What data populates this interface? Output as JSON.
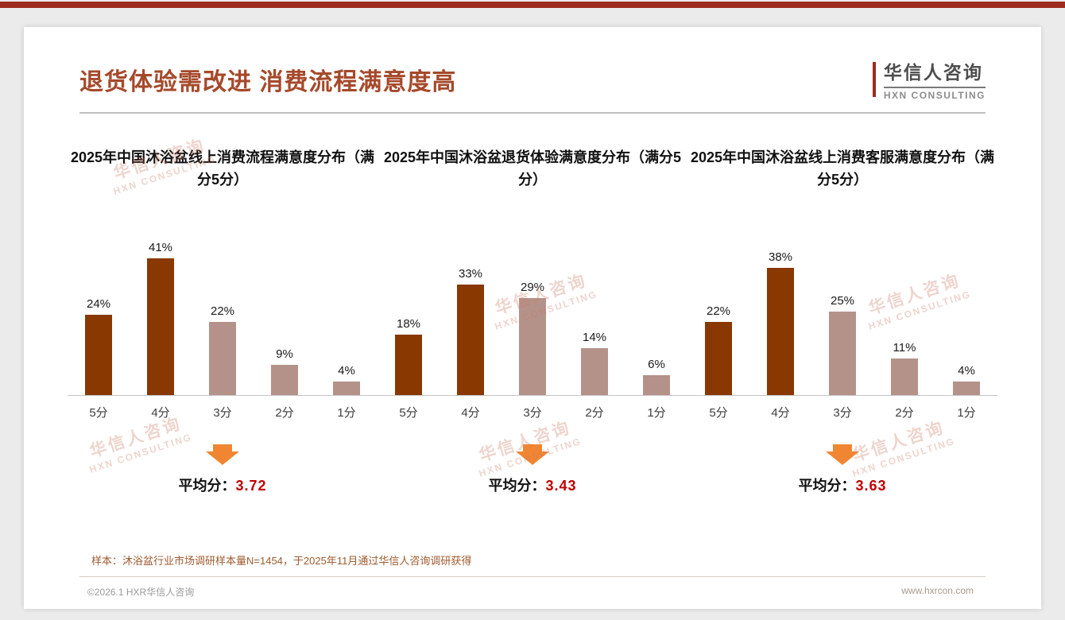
{
  "slide": {
    "title": "退货体验需改进 消费流程满意度高",
    "logo": {
      "cn": "华信人咨询",
      "en": "HXN CONSULTING"
    },
    "watermark": {
      "line1": "华信人咨询",
      "line2": "HXN CONSULTING"
    },
    "footnote": "样本：沐浴盆行业市场调研样本量N=1454，于2025年11月通过华信人咨询调研获得",
    "footer": {
      "left": "©2026.1 HXR华信人咨询",
      "right": "www.hxrcon.com"
    }
  },
  "colors": {
    "top_bar": "#9E2A1F",
    "title_color": "#A5492B",
    "bar_dark": "#883800",
    "bar_light": "#B4928A",
    "average_red": "#C00000",
    "arrow": "#F08632",
    "footnote_color": "#9E5B2F"
  },
  "chart_data": [
    {
      "type": "bar",
      "title": "2025年中国沐浴盆线上消费流程满意度分布（满分5分）",
      "categories": [
        "5分",
        "4分",
        "3分",
        "2分",
        "1分"
      ],
      "values": [
        24,
        41,
        22,
        9,
        4
      ],
      "value_labels": [
        "24%",
        "41%",
        "22%",
        "9%",
        "4%"
      ],
      "bar_colors": [
        "#883800",
        "#883800",
        "#B4928A",
        "#B4928A",
        "#B4928A"
      ],
      "ylim": [
        0,
        45
      ],
      "grid": false,
      "average_label": "平均分：",
      "average": "3.72"
    },
    {
      "type": "bar",
      "title": "2025年中国沐浴盆退货体验满意度分布（满分5分）",
      "categories": [
        "5分",
        "4分",
        "3分",
        "2分",
        "1分"
      ],
      "values": [
        18,
        33,
        29,
        14,
        6
      ],
      "value_labels": [
        "18%",
        "33%",
        "29%",
        "14%",
        "6%"
      ],
      "bar_colors": [
        "#883800",
        "#883800",
        "#B4928A",
        "#B4928A",
        "#B4928A"
      ],
      "ylim": [
        0,
        45
      ],
      "grid": false,
      "average_label": "平均分：",
      "average": "3.43"
    },
    {
      "type": "bar",
      "title": "2025年中国沐浴盆线上消费客服满意度分布（满分5分）",
      "categories": [
        "5分",
        "4分",
        "3分",
        "2分",
        "1分"
      ],
      "values": [
        22,
        38,
        25,
        11,
        4
      ],
      "value_labels": [
        "22%",
        "38%",
        "25%",
        "11%",
        "4%"
      ],
      "bar_colors": [
        "#883800",
        "#883800",
        "#B4928A",
        "#B4928A",
        "#B4928A"
      ],
      "ylim": [
        0,
        45
      ],
      "grid": false,
      "average_label": "平均分：",
      "average": "3.63"
    }
  ]
}
